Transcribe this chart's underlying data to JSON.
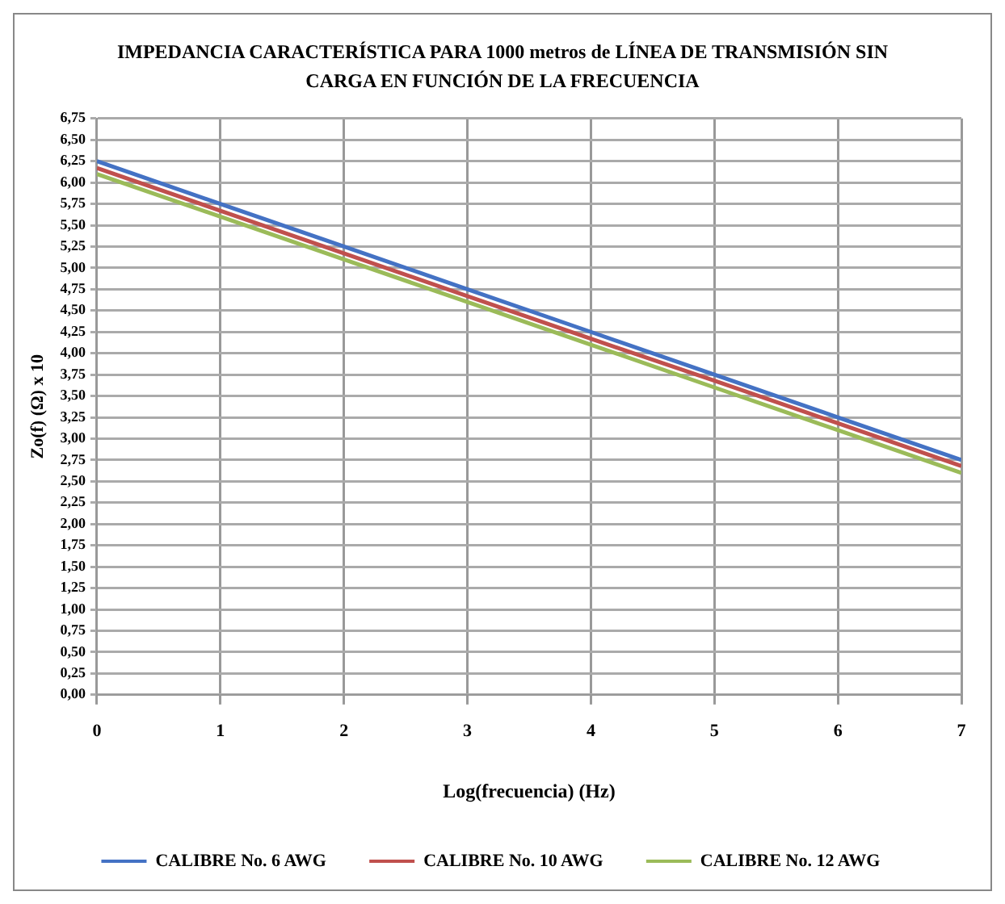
{
  "chart_data": {
    "type": "line",
    "title": "IMPEDANCIA CARACTERÍSTICA PARA 1000 metros de LÍNEA DE TRANSMISIÓN SIN CARGA EN FUNCIÓN DE LA FRECUENCIA",
    "xlabel": "Log(frecuencia) (Hz)",
    "ylabel": "Zo(f) (Ω) x 10",
    "x": [
      0,
      1,
      2,
      3,
      4,
      5,
      6,
      7
    ],
    "series": [
      {
        "name": "CALIBRE No. 6 AWG",
        "color": "#4472c4",
        "values": [
          6.25,
          5.75,
          5.25,
          4.75,
          4.25,
          3.75,
          3.25,
          2.75
        ]
      },
      {
        "name": "CALIBRE No. 10 AWG",
        "color": "#c0504d",
        "values": [
          6.17,
          5.67,
          5.17,
          4.67,
          4.17,
          3.68,
          3.18,
          2.68
        ]
      },
      {
        "name": "CALIBRE No. 12 AWG",
        "color": "#9bbb59",
        "values": [
          6.1,
          5.6,
          5.1,
          4.6,
          4.1,
          3.6,
          3.1,
          2.6
        ]
      }
    ],
    "xlim": [
      0,
      7
    ],
    "xticks": [
      0,
      1,
      2,
      3,
      4,
      5,
      6,
      7
    ],
    "ylim": [
      0,
      6.75
    ],
    "yticks": [
      {
        "value": 0,
        "label": "0,00"
      },
      {
        "value": 0.25,
        "label": "0,25"
      },
      {
        "value": 0.5,
        "label": "0,50"
      },
      {
        "value": 0.75,
        "label": "0,75"
      },
      {
        "value": 1,
        "label": "1,00"
      },
      {
        "value": 1.25,
        "label": "1,25"
      },
      {
        "value": 1.5,
        "label": "1,50"
      },
      {
        "value": 1.75,
        "label": "1,75"
      },
      {
        "value": 2,
        "label": "2,00"
      },
      {
        "value": 2.25,
        "label": "2,25"
      },
      {
        "value": 2.5,
        "label": "2,50"
      },
      {
        "value": 2.75,
        "label": "2,75"
      },
      {
        "value": 3,
        "label": "3,00"
      },
      {
        "value": 3.25,
        "label": "3,25"
      },
      {
        "value": 3.5,
        "label": "3,50"
      },
      {
        "value": 3.75,
        "label": "3,75"
      },
      {
        "value": 4,
        "label": "4,00"
      },
      {
        "value": 4.25,
        "label": "4,25"
      },
      {
        "value": 4.5,
        "label": "4,50"
      },
      {
        "value": 4.75,
        "label": "4,75"
      },
      {
        "value": 5,
        "label": "5,00"
      },
      {
        "value": 5.25,
        "label": "5,25"
      },
      {
        "value": 5.5,
        "label": "5,50"
      },
      {
        "value": 5.75,
        "label": "5,75"
      },
      {
        "value": 6,
        "label": "6,00"
      },
      {
        "value": 6.25,
        "label": "6,25"
      },
      {
        "value": 6.5,
        "label": "6,50"
      },
      {
        "value": 6.75,
        "label": "6,75"
      }
    ],
    "grid": true,
    "legend": "bottom",
    "marker": "none",
    "line_style": "solid"
  }
}
